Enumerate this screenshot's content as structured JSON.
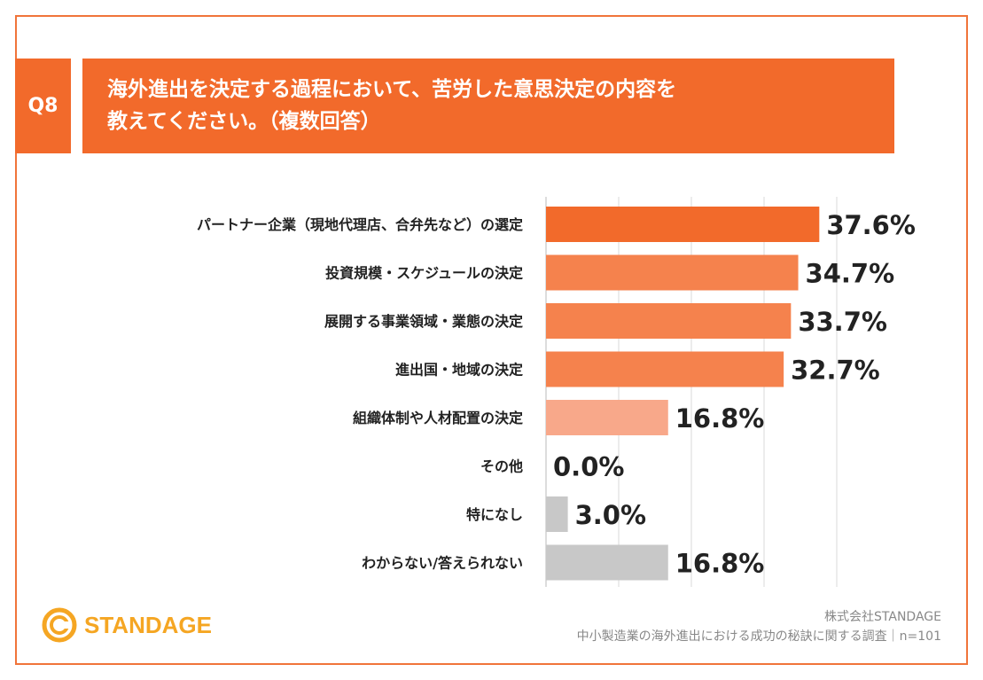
{
  "question": {
    "badge": "Q8",
    "line1": "海外進出を決定する過程において、苦労した意思決定の内容を",
    "line2": "教えてください。（複数回答）"
  },
  "chart_data": {
    "type": "bar",
    "orientation": "horizontal",
    "title": "海外進出を決定する過程において、苦労した意思決定の内容を教えてください。（複数回答）",
    "xlim": [
      0,
      40
    ],
    "grid": true,
    "categories": [
      "パートナー企業（現地代理店、合弁先など）の選定",
      "投資規模・スケジュールの決定",
      "展開する事業領域・業態の決定",
      "進出国・地域の決定",
      "組織体制や人材配置の決定",
      "その他",
      "特になし",
      "わからない/答えられない"
    ],
    "values": [
      37.6,
      34.7,
      33.7,
      32.7,
      16.8,
      0.0,
      3.0,
      16.8
    ],
    "value_labels": [
      "37.6%",
      "34.7%",
      "33.7%",
      "32.7%",
      "16.8%",
      "0.0%",
      "3.0%",
      "16.8%"
    ],
    "colors": [
      "#f26a2b",
      "#f5824d",
      "#f5824d",
      "#f5824d",
      "#f8a88a",
      "#c8c8c8",
      "#c8c8c8",
      "#c8c8c8"
    ]
  },
  "logo": {
    "name": "STANDAGE",
    "color": "#f5a623"
  },
  "credit": {
    "company": "株式会社STANDAGE",
    "survey": "中小製造業の海外進出における成功の秘訣に関する調査｜n=101"
  }
}
